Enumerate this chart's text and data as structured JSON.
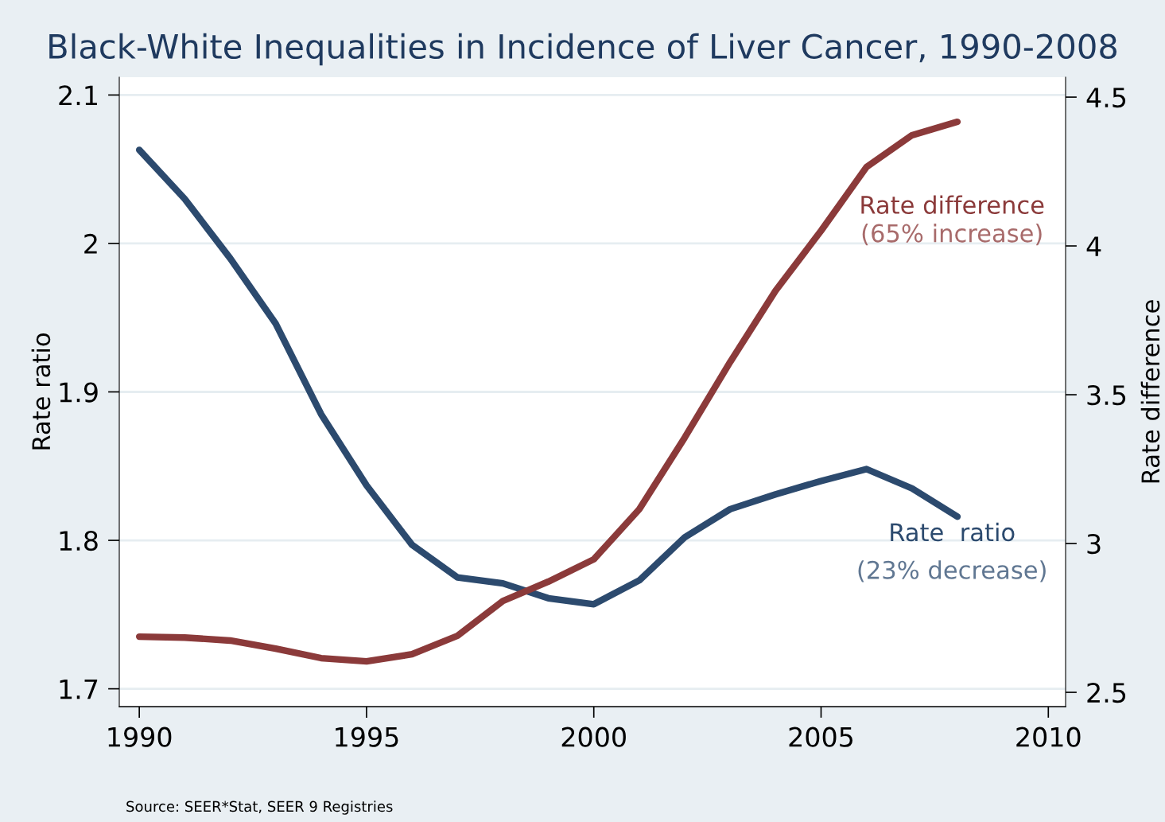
{
  "chart_data": {
    "type": "line",
    "title": "Black-White Inequalities in Incidence of Liver Cancer, 1990-2008",
    "ylabel": "Rate ratio",
    "y2label": "Rate difference",
    "x": [
      1990,
      1991,
      1992,
      1993,
      1994,
      1995,
      1996,
      1997,
      1998,
      1999,
      2000,
      2001,
      2002,
      2003,
      2004,
      2005,
      2006,
      2007,
      2008
    ],
    "series": [
      {
        "name": "Rate  ratio",
        "color": "#2c4a6e",
        "values": [
          2.063,
          2.03,
          1.99,
          1.946,
          1.885,
          1.837,
          1.797,
          1.775,
          1.771,
          1.761,
          1.757,
          1.773,
          1.802,
          1.821,
          1.831,
          1.84,
          1.848,
          1.835,
          1.816
        ]
      },
      {
        "name": "Rate difference",
        "color": "#8b3a3a",
        "axis": "y2",
        "values": [
          2.687,
          2.684,
          2.674,
          2.647,
          2.615,
          2.604,
          2.628,
          2.69,
          2.807,
          2.872,
          2.947,
          3.115,
          3.356,
          3.61,
          3.85,
          4.051,
          4.265,
          4.372,
          4.417
        ]
      }
    ],
    "annotations": [
      "(23% decrease)",
      "(65% increase)",
      "Source: SEER*Stat, SEER 9 Registries"
    ],
    "xlim": [
      1989.56,
      2010.38
    ],
    "xticks": [
      1990,
      1995,
      2000,
      2005,
      2010
    ],
    "ylim": [
      1.688,
      2.112
    ],
    "yticks": [
      1.7,
      1.8,
      1.9,
      2,
      2.1
    ],
    "y2lim": [
      2.452,
      4.567
    ],
    "y2ticks": [
      2.5,
      3,
      3.5,
      4,
      4.5
    ],
    "grid": "y",
    "legend": false,
    "marker": "none",
    "line_style": "solid"
  }
}
